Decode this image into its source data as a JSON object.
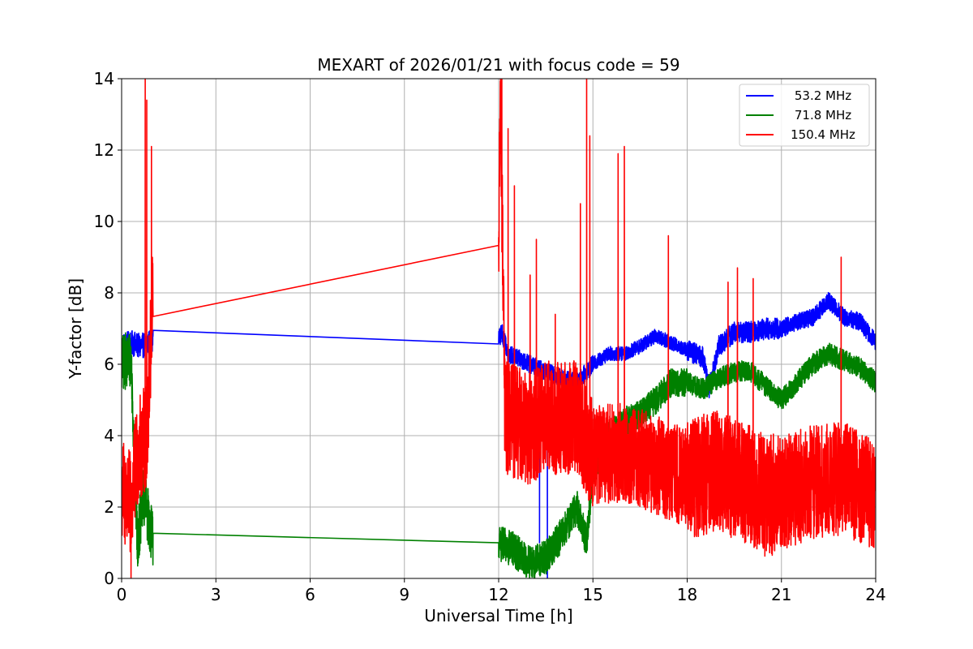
{
  "chart_data": {
    "type": "line",
    "title": "MEXART of 2026/01/21 with focus code = 59",
    "xlabel": "Universal Time [h]",
    "ylabel": "Y-factor [dB]",
    "xlim": [
      0,
      24
    ],
    "ylim": [
      0,
      14
    ],
    "xticks": [
      0,
      3,
      6,
      9,
      12,
      15,
      18,
      21,
      24
    ],
    "xtick_labels": [
      "0",
      "3",
      "6",
      "9",
      "12",
      "15",
      "18",
      "21",
      "24"
    ],
    "yticks": [
      0,
      2,
      4,
      6,
      8,
      10,
      12,
      14
    ],
    "ytick_labels": [
      "0",
      "2",
      "4",
      "6",
      "8",
      "10",
      "12",
      "14"
    ],
    "grid": true,
    "legend_position": "top-right",
    "series": [
      {
        "name": "53.2 MHz",
        "color": "#0000ff",
        "noise_amplitude": [
          0.35,
          0.0,
          0.0,
          0.35,
          0.25,
          0.2,
          0.3,
          0.25
        ],
        "points": [
          [
            0,
            6.5
          ],
          [
            0.3,
            6.6
          ],
          [
            0.6,
            6.5
          ],
          [
            1.0,
            6.65
          ],
          [
            12.0,
            6.7
          ],
          [
            12.1,
            6.9
          ],
          [
            12.3,
            6.3
          ],
          [
            13.0,
            6.0
          ],
          [
            13.5,
            5.8
          ],
          [
            14.0,
            5.6
          ],
          [
            14.5,
            5.5
          ],
          [
            15.0,
            6.0
          ],
          [
            15.5,
            6.3
          ],
          [
            16.0,
            6.3
          ],
          [
            16.5,
            6.5
          ],
          [
            17.0,
            6.8
          ],
          [
            17.5,
            6.6
          ],
          [
            18.0,
            6.4
          ],
          [
            18.5,
            6.2
          ],
          [
            18.7,
            5.3
          ],
          [
            19.0,
            6.5
          ],
          [
            19.5,
            6.9
          ],
          [
            20.0,
            6.9
          ],
          [
            20.5,
            7.0
          ],
          [
            21.0,
            7.0
          ],
          [
            21.5,
            7.2
          ],
          [
            22.0,
            7.3
          ],
          [
            22.5,
            7.8
          ],
          [
            23.0,
            7.3
          ],
          [
            23.5,
            7.2
          ],
          [
            24.0,
            6.6
          ]
        ],
        "dips": [
          [
            13.3,
            1.0
          ],
          [
            13.55,
            0.0
          ]
        ]
      },
      {
        "name": "71.8 MHz",
        "color": "#008000",
        "noise_amplitude": [
          0.8,
          0.0,
          0.0,
          0.6,
          0.5,
          0.4,
          0.3,
          0.3
        ],
        "points": [
          [
            0,
            6.0
          ],
          [
            0.3,
            6.2
          ],
          [
            0.5,
            1.0
          ],
          [
            0.7,
            2.3
          ],
          [
            0.9,
            1.5
          ],
          [
            1.0,
            1.1
          ],
          [
            12.0,
            1.0
          ],
          [
            12.5,
            0.8
          ],
          [
            13.0,
            0.4
          ],
          [
            13.5,
            0.6
          ],
          [
            14.0,
            1.2
          ],
          [
            14.5,
            2.0
          ],
          [
            14.8,
            1.0
          ],
          [
            15.0,
            3.0
          ],
          [
            15.5,
            4.0
          ],
          [
            16.0,
            4.4
          ],
          [
            16.5,
            4.6
          ],
          [
            17.0,
            5.0
          ],
          [
            17.5,
            5.5
          ],
          [
            18.0,
            5.5
          ],
          [
            18.5,
            5.3
          ],
          [
            19.0,
            5.6
          ],
          [
            19.5,
            5.8
          ],
          [
            20.0,
            5.8
          ],
          [
            20.5,
            5.4
          ],
          [
            21.0,
            5.0
          ],
          [
            21.5,
            5.5
          ],
          [
            22.0,
            6.0
          ],
          [
            22.5,
            6.3
          ],
          [
            23.0,
            6.1
          ],
          [
            23.5,
            5.9
          ],
          [
            24.0,
            5.5
          ]
        ],
        "dips": []
      },
      {
        "name": "150.4 MHz",
        "color": "#ff0000",
        "noise_amplitude": [
          1.5,
          0.0,
          0.0,
          1.6,
          1.6,
          1.4,
          1.7,
          1.6
        ],
        "points": [
          [
            0,
            2.5
          ],
          [
            0.3,
            2.0
          ],
          [
            0.5,
            3.5
          ],
          [
            0.8,
            4.0
          ],
          [
            1.0,
            8.0
          ],
          [
            12.0,
            8.5
          ],
          [
            12.05,
            14.0
          ],
          [
            12.2,
            4.5
          ],
          [
            13.0,
            4.2
          ],
          [
            13.5,
            4.5
          ],
          [
            14.0,
            4.5
          ],
          [
            14.5,
            4.5
          ],
          [
            15.0,
            3.5
          ],
          [
            16.0,
            3.5
          ],
          [
            17.0,
            3.2
          ],
          [
            18.0,
            2.8
          ],
          [
            19.0,
            3.0
          ],
          [
            20.0,
            2.6
          ],
          [
            20.5,
            2.3
          ],
          [
            21.0,
            2.4
          ],
          [
            22.0,
            2.7
          ],
          [
            23.0,
            2.8
          ],
          [
            24.0,
            2.4
          ]
        ],
        "spikes": [
          [
            0.75,
            14.0
          ],
          [
            0.8,
            13.4
          ],
          [
            0.95,
            12.1
          ],
          [
            12.1,
            14.0
          ],
          [
            12.3,
            12.6
          ],
          [
            12.5,
            11.0
          ],
          [
            13.2,
            9.5
          ],
          [
            13.0,
            8.5
          ],
          [
            13.8,
            7.4
          ],
          [
            14.6,
            10.5
          ],
          [
            14.8,
            14.0
          ],
          [
            14.9,
            12.4
          ],
          [
            15.8,
            11.9
          ],
          [
            16.0,
            12.1
          ],
          [
            17.4,
            9.6
          ],
          [
            19.3,
            8.3
          ],
          [
            19.6,
            8.7
          ],
          [
            20.1,
            8.4
          ],
          [
            22.9,
            9.0
          ]
        ],
        "dips": [
          [
            0.3,
            0.0
          ]
        ]
      }
    ]
  }
}
